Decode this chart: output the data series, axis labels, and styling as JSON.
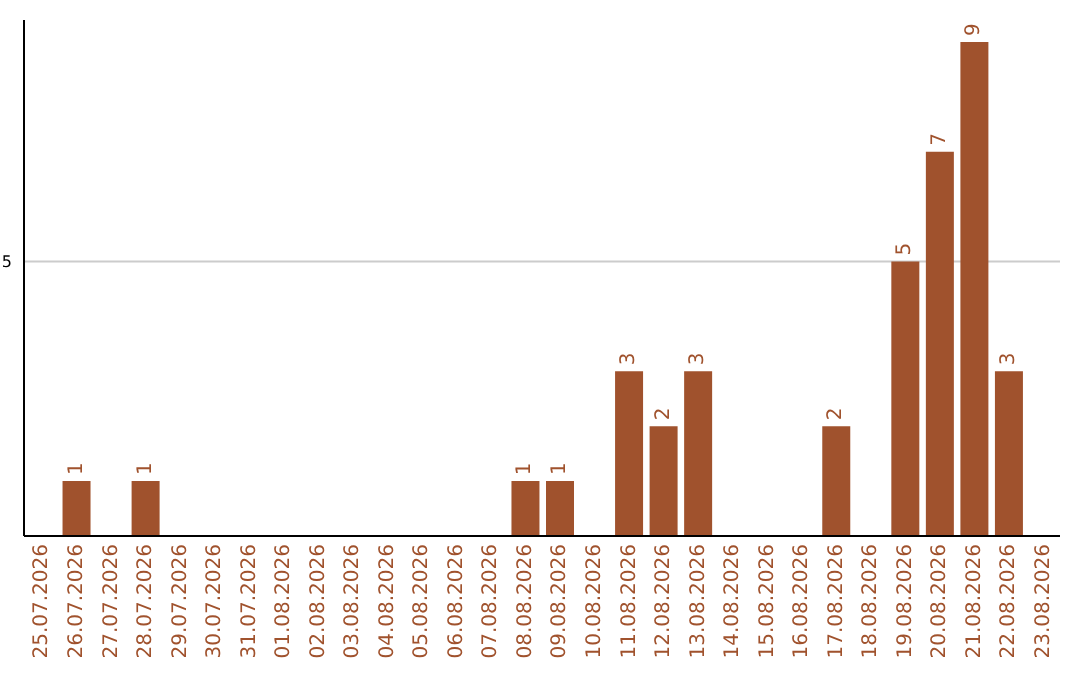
{
  "chart_data": {
    "type": "bar",
    "categories": [
      "25.07.2026",
      "26.07.2026",
      "27.07.2026",
      "28.07.2026",
      "29.07.2026",
      "30.07.2026",
      "31.07.2026",
      "01.08.2026",
      "02.08.2026",
      "03.08.2026",
      "04.08.2026",
      "05.08.2026",
      "06.08.2026",
      "07.08.2026",
      "08.08.2026",
      "09.08.2026",
      "10.08.2026",
      "11.08.2026",
      "12.08.2026",
      "13.08.2026",
      "14.08.2026",
      "15.08.2026",
      "16.08.2026",
      "17.08.2026",
      "18.08.2026",
      "19.08.2026",
      "20.08.2026",
      "21.08.2026",
      "22.08.2026",
      "23.08.2026"
    ],
    "values": [
      0,
      1,
      0,
      1,
      0,
      0,
      0,
      0,
      0,
      0,
      0,
      0,
      0,
      0,
      1,
      1,
      0,
      3,
      2,
      3,
      0,
      0,
      0,
      2,
      0,
      5,
      7,
      9,
      3,
      0
    ],
    "value_labels": [
      null,
      "1",
      null,
      "1",
      null,
      null,
      null,
      null,
      null,
      null,
      null,
      null,
      null,
      null,
      "1",
      "1",
      null,
      "3",
      "2",
      "3",
      null,
      null,
      null,
      "2",
      null,
      "5",
      "7",
      "9",
      "3",
      null
    ],
    "color": "#a0522d",
    "ylim": [
      0,
      9.4
    ],
    "yticks": [
      5
    ],
    "grid": "y"
  }
}
